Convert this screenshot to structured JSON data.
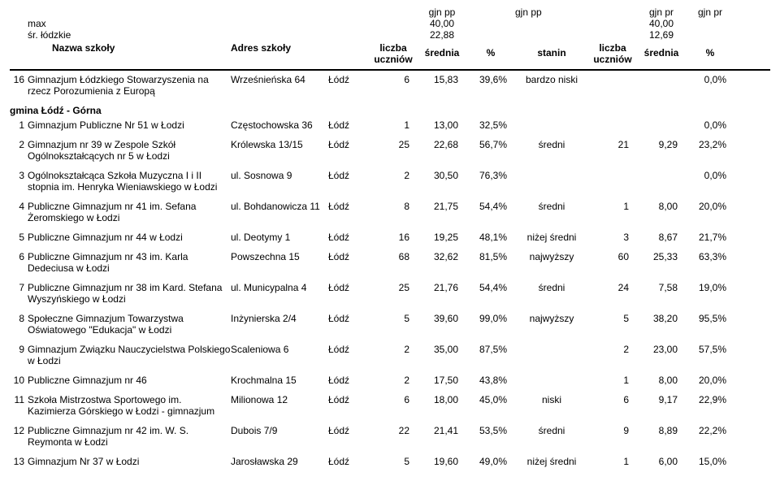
{
  "top": {
    "max_label": "max",
    "avg_label": "śr. łódzkie",
    "gjn_pp": "gjn pp",
    "gjn_pr": "gjn pr",
    "max_pp": "40,00",
    "max_pr": "40,00",
    "avg_pp": "22,88",
    "avg_pr": "12,69"
  },
  "header": {
    "name": "Nazwa szkoły",
    "addr": "Adres szkoły",
    "count1": "liczba",
    "count2": "uczniów",
    "avg": "średnia",
    "pct": "%",
    "stanin": "stanin"
  },
  "preRow": {
    "idx": "16",
    "name": "Gimnazjum Łódzkiego Stowarzyszenia na rzecz Porozumienia z Europą",
    "addr": "Wrześnieńska 64",
    "city": "Łódź",
    "n1": "6",
    "avg1": "15,83",
    "pct1": "39,6%",
    "stanin": "bardzo niski",
    "pct2": "0,0%"
  },
  "section": "gmina Łódź - Górna",
  "rows": [
    {
      "idx": "1",
      "name": "Gimnazjum Publiczne Nr 51 w Łodzi",
      "addr": "Częstochowska 36",
      "city": "Łódź",
      "n1": "1",
      "avg1": "13,00",
      "pct1": "32,5%",
      "stanin": "",
      "n2": "",
      "avg2": "",
      "pct2": "0,0%"
    },
    {
      "idx": "2",
      "name": "Gimnazjum nr 39 w Zespole Szkół Ogólnokształcących nr 5 w Łodzi",
      "addr": "Królewska 13/15",
      "city": "Łódź",
      "n1": "25",
      "avg1": "22,68",
      "pct1": "56,7%",
      "stanin": "średni",
      "n2": "21",
      "avg2": "9,29",
      "pct2": "23,2%"
    },
    {
      "idx": "3",
      "name": "Ogólnokształcąca Szkoła Muzyczna I i II stopnia im. Henryka Wieniawskiego w Łodzi",
      "addr": "ul. Sosnowa 9",
      "city": "Łódź",
      "n1": "2",
      "avg1": "30,50",
      "pct1": "76,3%",
      "stanin": "",
      "n2": "",
      "avg2": "",
      "pct2": "0,0%"
    },
    {
      "idx": "4",
      "name": "Publiczne Gimnazjum nr 41 im. Sefana Żeromskiego w Łodzi",
      "addr": "ul. Bohdanowicza 11",
      "city": "Łódź",
      "n1": "8",
      "avg1": "21,75",
      "pct1": "54,4%",
      "stanin": "średni",
      "n2": "1",
      "avg2": "8,00",
      "pct2": "20,0%"
    },
    {
      "idx": "5",
      "name": "Publiczne Gimnazjum nr 44 w Łodzi",
      "addr": "ul. Deotymy 1",
      "city": "Łódź",
      "n1": "16",
      "avg1": "19,25",
      "pct1": "48,1%",
      "stanin": "niżej średni",
      "n2": "3",
      "avg2": "8,67",
      "pct2": "21,7%"
    },
    {
      "idx": "6",
      "name": "Publiczne Gimnazjum nr 43 im. Karla Dedeciusa w Łodzi",
      "addr": "Powszechna 15",
      "city": "Łódź",
      "n1": "68",
      "avg1": "32,62",
      "pct1": "81,5%",
      "stanin": "najwyższy",
      "n2": "60",
      "avg2": "25,33",
      "pct2": "63,3%"
    },
    {
      "idx": "7",
      "name": "Publiczne Gimnazjum nr 38 im Kard. Stefana Wyszyńskiego w Łodzi",
      "addr": "ul. Municypalna 4",
      "city": "Łódź",
      "n1": "25",
      "avg1": "21,76",
      "pct1": "54,4%",
      "stanin": "średni",
      "n2": "24",
      "avg2": "7,58",
      "pct2": "19,0%"
    },
    {
      "idx": "8",
      "name": "Społeczne Gimnazjum Towarzystwa Oświatowego \"Edukacja\" w Łodzi",
      "addr": "Inżynierska 2/4",
      "city": "Łódź",
      "n1": "5",
      "avg1": "39,60",
      "pct1": "99,0%",
      "stanin": "najwyższy",
      "n2": "5",
      "avg2": "38,20",
      "pct2": "95,5%"
    },
    {
      "idx": "9",
      "name": "Gimnazjum Związku Nauczycielstwa Polskiego w Łodzi",
      "addr": "Scaleniowa 6",
      "city": "Łódź",
      "n1": "2",
      "avg1": "35,00",
      "pct1": "87,5%",
      "stanin": "",
      "n2": "2",
      "avg2": "23,00",
      "pct2": "57,5%"
    },
    {
      "idx": "10",
      "name": "Publiczne Gimnazjum nr 46",
      "addr": "Krochmalna 15",
      "city": "Łódź",
      "n1": "2",
      "avg1": "17,50",
      "pct1": "43,8%",
      "stanin": "",
      "n2": "1",
      "avg2": "8,00",
      "pct2": "20,0%"
    },
    {
      "idx": "11",
      "name": "Szkoła Mistrzostwa Sportowego im. Kazimierza Górskiego w Łodzi - gimnazjum",
      "addr": "Milionowa 12",
      "city": "Łódź",
      "n1": "6",
      "avg1": "18,00",
      "pct1": "45,0%",
      "stanin": "niski",
      "n2": "6",
      "avg2": "9,17",
      "pct2": "22,9%"
    },
    {
      "idx": "12",
      "name": "Publiczne Gimnazjum nr 42 im. W. S. Reymonta w Łodzi",
      "addr": "Dubois 7/9",
      "city": "Łódź",
      "n1": "22",
      "avg1": "21,41",
      "pct1": "53,5%",
      "stanin": "średni",
      "n2": "9",
      "avg2": "8,89",
      "pct2": "22,2%"
    },
    {
      "idx": "13",
      "name": "Gimnazjum Nr 37 w Łodzi",
      "addr": "Jarosławska 29",
      "city": "Łódź",
      "n1": "5",
      "avg1": "19,60",
      "pct1": "49,0%",
      "stanin": "niżej średni",
      "n2": "1",
      "avg2": "6,00",
      "pct2": "15,0%"
    }
  ]
}
